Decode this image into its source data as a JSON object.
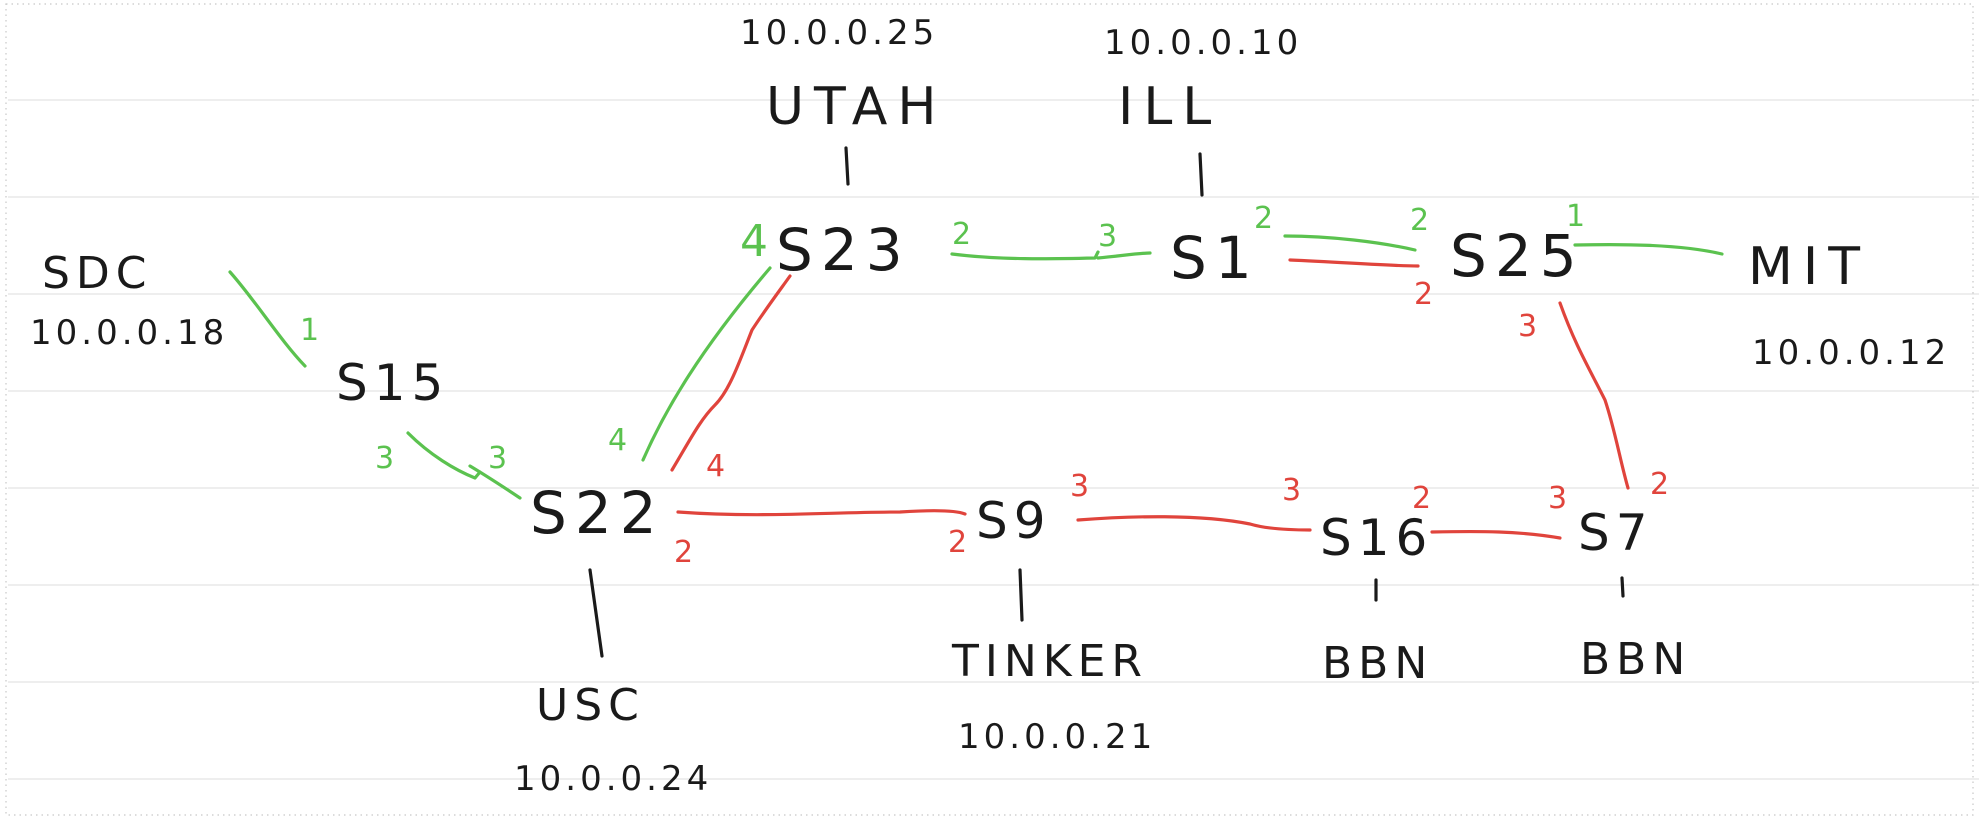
{
  "colors": {
    "green_path": "#5bc24f",
    "red_path": "#e0443c",
    "ink": "#1a1a1a",
    "rule": "#dcdcdc"
  },
  "switches": {
    "s23": "S23",
    "s1": "S1",
    "s25": "S25",
    "s15": "S15",
    "s22": "S22",
    "s9": "S9",
    "s16": "S16",
    "s7": "S7"
  },
  "hosts": {
    "utah": {
      "name": "UTAH",
      "ip": "10.0.0.25"
    },
    "ill": {
      "name": "ILL",
      "ip": "10.0.0.10"
    },
    "sdc": {
      "name": "SDC",
      "ip": "10.0.0.18"
    },
    "mit": {
      "name": "MIT",
      "ip": "10.0.0.12"
    },
    "usc": {
      "name": "USC",
      "ip": "10.0.0.24"
    },
    "tinker": {
      "name": "TINKER",
      "ip": "10.0.0.21"
    },
    "bbn1": {
      "name": "BBN"
    },
    "bbn2": {
      "name": "BBN"
    }
  },
  "ports": {
    "green": {
      "sdc_s15": "1",
      "s15_out": "3",
      "s22_in": "3",
      "s22_up": "4",
      "s23_left": "4",
      "s23_right": "2",
      "s1_left": "3",
      "s1_right": "2",
      "s25_left": "2",
      "s25_right": "1"
    },
    "red": {
      "s22_up": "4",
      "s22_right": "2",
      "s9_left": "2",
      "s9_right": "3",
      "s16_left": "3",
      "s16_right": "2",
      "s7_left": "3",
      "s7_up": "2",
      "s25_down": "3",
      "s25_left": "2"
    }
  }
}
